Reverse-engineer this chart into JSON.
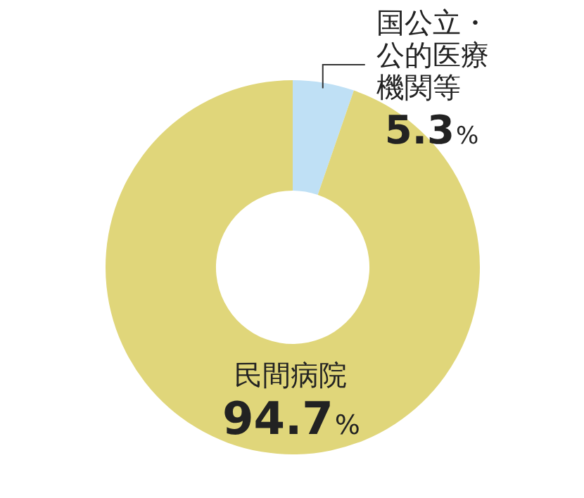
{
  "chart_data": {
    "type": "donut",
    "categories": [
      "国公立・公的医療機関等",
      "民間病院"
    ],
    "values": [
      5.3,
      94.7
    ],
    "colors": [
      "#bfe0f5",
      "#e0d67a"
    ],
    "value_labels": [
      "5.3%",
      "94.7%"
    ],
    "legend": false
  }
}
